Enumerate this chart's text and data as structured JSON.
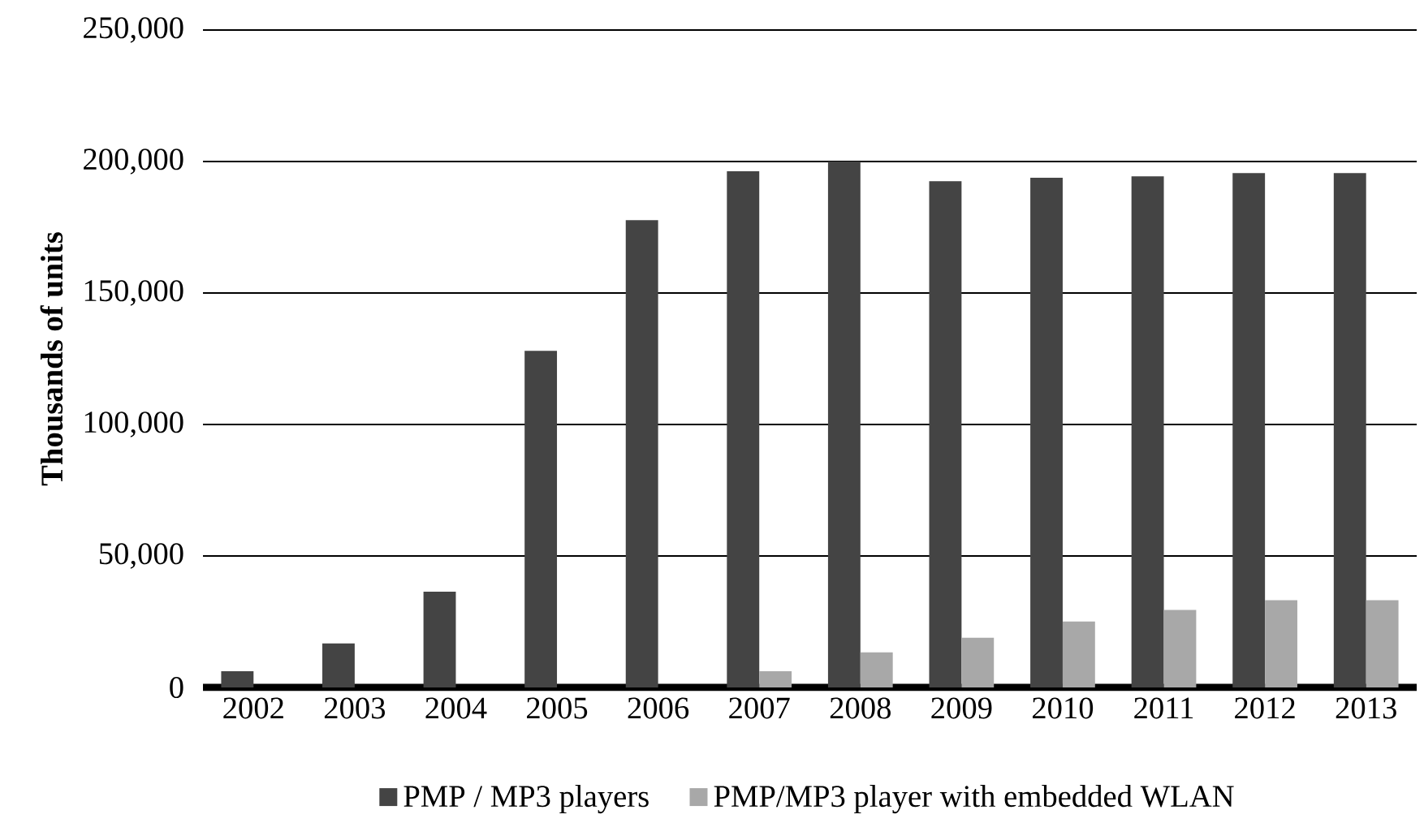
{
  "chart_data": {
    "type": "bar",
    "ylabel": "Thousands of units",
    "categories": [
      "2002",
      "2003",
      "2004",
      "2005",
      "2006",
      "2007",
      "2008",
      "2009",
      "2010",
      "2011",
      "2012",
      "2013"
    ],
    "series": [
      {
        "name": "PMP / MP3 players",
        "color": "#444444",
        "values": [
          6200,
          16700,
          36400,
          128000,
          177700,
          196300,
          200000,
          192500,
          193800,
          194400,
          195600,
          195600
        ]
      },
      {
        "name": "PMP/MP3 player with embedded WLAN",
        "color": "#a8a8a8",
        "values": [
          0,
          0,
          0,
          0,
          0,
          6200,
          13300,
          18900,
          25100,
          29500,
          33200,
          33200
        ]
      }
    ],
    "ylim": [
      0,
      250000
    ],
    "yticks": [
      {
        "value": 0,
        "label": "0"
      },
      {
        "value": 50000,
        "label": "50,000"
      },
      {
        "value": 100000,
        "label": "100,000"
      },
      {
        "value": 150000,
        "label": "150,000"
      },
      {
        "value": 200000,
        "label": "200,000"
      },
      {
        "value": 250000,
        "label": "250,000"
      }
    ],
    "grid": "y",
    "legend": "bottom"
  }
}
